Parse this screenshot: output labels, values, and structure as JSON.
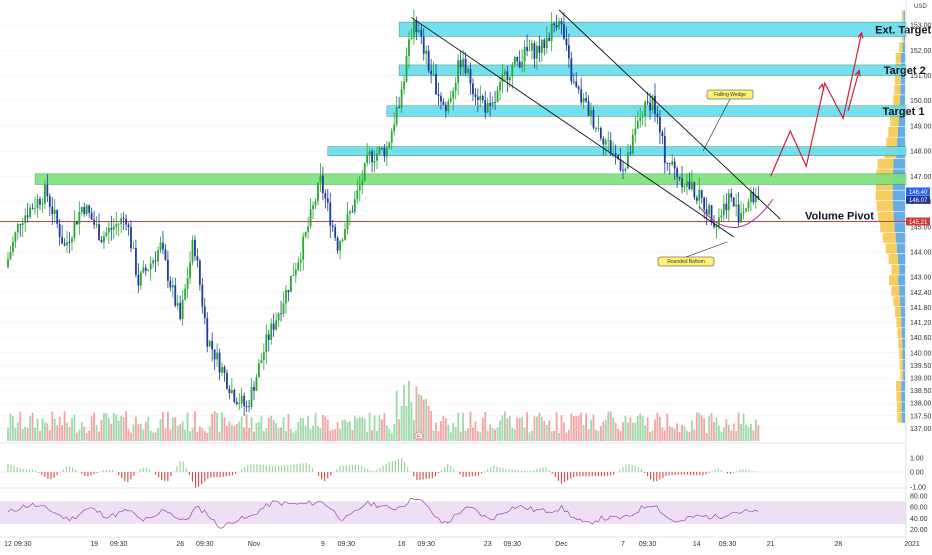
{
  "chart_data": {
    "type": "candlestick",
    "currency": "USD",
    "price_axis_ticks": [
      153.0,
      152.0,
      151.0,
      150.0,
      149.0,
      148.0,
      147.0,
      146.0,
      145.0,
      144.0,
      143.0,
      142.4,
      141.8,
      141.2,
      140.6,
      140.0,
      139.5,
      139.0,
      138.5,
      138.0,
      137.5,
      137.0
    ],
    "y_range": [
      136.7,
      153.6
    ],
    "time_axis_labels": [
      {
        "label": "12",
        "day": 0
      },
      {
        "label": "09:30",
        "day": 1.2
      },
      {
        "label": "19",
        "day": 7
      },
      {
        "label": "09:30",
        "day": 9
      },
      {
        "label": "26",
        "day": 14
      },
      {
        "label": "09:30",
        "day": 16
      },
      {
        "label": "Nov",
        "day": 20
      },
      {
        "label": "9",
        "day": 25.6
      },
      {
        "label": "09:30",
        "day": 27.5
      },
      {
        "label": "16",
        "day": 32
      },
      {
        "label": "09:30",
        "day": 34
      },
      {
        "label": "23",
        "day": 39
      },
      {
        "label": "09:30",
        "day": 41
      },
      {
        "label": "Dec",
        "day": 45
      },
      {
        "label": "7",
        "day": 50
      },
      {
        "label": "09:30",
        "day": 52
      },
      {
        "label": "14",
        "day": 56
      },
      {
        "label": "09:30",
        "day": 58.5
      },
      {
        "label": "21",
        "day": 62
      },
      {
        "label": "28",
        "day": 67.5
      },
      {
        "label": "2021",
        "day": 73.5
      }
    ],
    "price_path": [
      {
        "day": 0,
        "price": 143.4
      },
      {
        "day": 1.2,
        "price": 145.3
      },
      {
        "day": 3.3,
        "price": 146.4
      },
      {
        "day": 4.8,
        "price": 144.2
      },
      {
        "day": 6.3,
        "price": 145.9
      },
      {
        "day": 7.8,
        "price": 144.6
      },
      {
        "day": 9.8,
        "price": 145.4
      },
      {
        "day": 10.8,
        "price": 142.8
      },
      {
        "day": 12.6,
        "price": 144.2
      },
      {
        "day": 14.2,
        "price": 141.3
      },
      {
        "day": 15.3,
        "price": 144.5
      },
      {
        "day": 16.4,
        "price": 140.6
      },
      {
        "day": 18.5,
        "price": 138.4
      },
      {
        "day": 19.6,
        "price": 137.8
      },
      {
        "day": 21.2,
        "price": 140.4
      },
      {
        "day": 22.8,
        "price": 142.4
      },
      {
        "day": 24.2,
        "price": 144.3
      },
      {
        "day": 25.6,
        "price": 146.8
      },
      {
        "day": 27.0,
        "price": 144.3
      },
      {
        "day": 28.4,
        "price": 146.0
      },
      {
        "day": 29.6,
        "price": 147.8
      },
      {
        "day": 31.0,
        "price": 148.1
      },
      {
        "day": 32.2,
        "price": 150.4
      },
      {
        "day": 33.2,
        "price": 153.3
      },
      {
        "day": 34.5,
        "price": 151.2
      },
      {
        "day": 35.8,
        "price": 149.6
      },
      {
        "day": 37.0,
        "price": 151.6
      },
      {
        "day": 38.2,
        "price": 150.4
      },
      {
        "day": 39.4,
        "price": 149.5
      },
      {
        "day": 40.7,
        "price": 151.1
      },
      {
        "day": 42.3,
        "price": 151.9
      },
      {
        "day": 43.6,
        "price": 152.1
      },
      {
        "day": 45.0,
        "price": 153.4
      },
      {
        "day": 46.1,
        "price": 150.7
      },
      {
        "day": 47.6,
        "price": 149.4
      },
      {
        "day": 49.3,
        "price": 148.0
      },
      {
        "day": 50.4,
        "price": 147.3
      },
      {
        "day": 51.6,
        "price": 149.4
      },
      {
        "day": 52.6,
        "price": 150.1
      },
      {
        "day": 53.6,
        "price": 147.8
      },
      {
        "day": 54.8,
        "price": 147.0
      },
      {
        "day": 55.8,
        "price": 146.5
      },
      {
        "day": 56.8,
        "price": 145.9
      },
      {
        "day": 57.8,
        "price": 145.2
      },
      {
        "day": 58.8,
        "price": 146.2
      },
      {
        "day": 59.6,
        "price": 145.5
      },
      {
        "day": 60.6,
        "price": 146.1
      },
      {
        "day": 61.2,
        "price": 146.3
      }
    ],
    "zones": [
      {
        "label": "Ext. Target",
        "low": 152.55,
        "high": 153.12,
        "from_day": 31.8,
        "color": "#64dcee"
      },
      {
        "label": "Target 2",
        "low": 151.0,
        "high": 151.42,
        "from_day": 31.8,
        "color": "#64dcee"
      },
      {
        "label": "Target 1",
        "low": 149.38,
        "high": 149.8,
        "from_day": 30.8,
        "color": "#64dcee"
      },
      {
        "label": "",
        "low": 147.82,
        "high": 148.18,
        "from_day": 26.0,
        "color": "#64dcee"
      },
      {
        "label": "",
        "low": 146.68,
        "high": 147.1,
        "from_day": 2.2,
        "color": "#7ce27c"
      }
    ],
    "pivot": {
      "label": "Volume Pivot",
      "price": 145.21,
      "color": "#d23a3a"
    },
    "current_price": {
      "value": "146.07",
      "last_close": "146.40"
    },
    "patterns": [
      {
        "label": "Falling Wedge"
      },
      {
        "label": "Rounded Bottom"
      }
    ],
    "projection": [
      {
        "day": 62.0,
        "price": 147.0
      },
      {
        "day": 63.6,
        "price": 148.8
      },
      {
        "day": 64.9,
        "price": 147.4
      },
      {
        "day": 66.4,
        "price": 150.7
      },
      {
        "day": 67.9,
        "price": 149.3
      },
      {
        "day": 69.4,
        "price": 152.7
      }
    ],
    "volume_marker": "E",
    "macd_axis": [
      "1.00",
      "0.00",
      "-1.00"
    ],
    "rsi_axis": [
      "80.00",
      "60.00",
      "40.00",
      "20.00"
    ],
    "rsi_band": [
      30,
      70
    ]
  },
  "colors": {
    "up_candle": "#26a633",
    "down_candle": "#1e3a9a",
    "zone_blue": "#64dcee",
    "zone_green": "#7ce27c",
    "pivot_red": "#d23a3a",
    "arrow_red": "#d0203a",
    "rsi_bg": "#efdff5",
    "rsi_line": "#9b4aa8",
    "note_bg": "#fff176"
  }
}
